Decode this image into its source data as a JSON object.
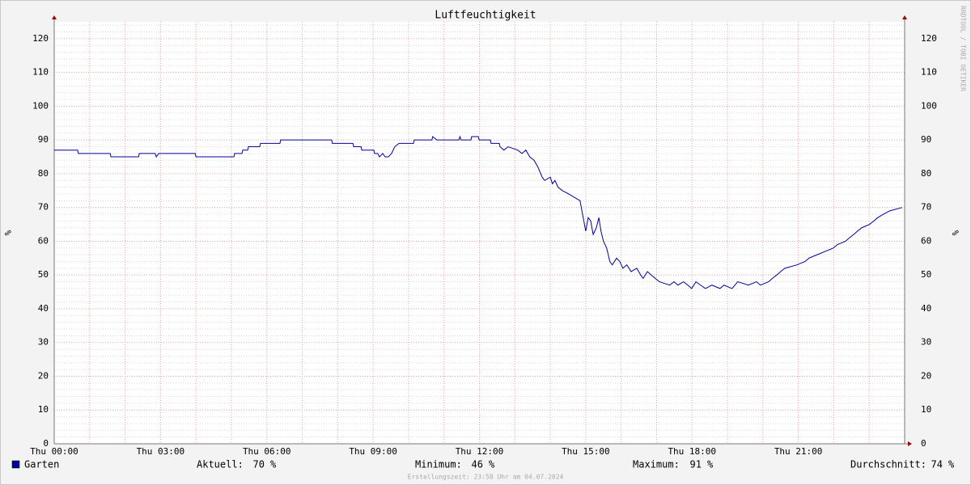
{
  "chart_data": {
    "type": "line",
    "title": "Luftfeuchtigkeit",
    "y_label": "%",
    "watermark": "RRDTOOL / TOBI OETIKER",
    "footer": "Erstellungszeit: 23:58 Uhr am 04.07.2024",
    "xlim": [
      0,
      24
    ],
    "xticks": [
      {
        "value": 0,
        "label": "Thu 00:00"
      },
      {
        "value": 3,
        "label": "Thu 03:00"
      },
      {
        "value": 6,
        "label": "Thu 06:00"
      },
      {
        "value": 9,
        "label": "Thu 09:00"
      },
      {
        "value": 12,
        "label": "Thu 12:00"
      },
      {
        "value": 15,
        "label": "Thu 15:00"
      },
      {
        "value": 18,
        "label": "Thu 18:00"
      },
      {
        "value": 21,
        "label": "Thu 21:00"
      }
    ],
    "xgrid": [
      1,
      2,
      4,
      5,
      7,
      8,
      10,
      11,
      13,
      14,
      16,
      17,
      19,
      20,
      22,
      23
    ],
    "ylim": [
      0,
      125
    ],
    "yticks": [
      0,
      10,
      20,
      30,
      40,
      50,
      60,
      70,
      80,
      90,
      100,
      110,
      120
    ],
    "yminor": [
      2,
      4,
      6,
      8,
      12,
      14,
      16,
      18,
      22,
      24,
      26,
      28,
      32,
      34,
      36,
      38,
      42,
      44,
      46,
      48,
      52,
      54,
      56,
      58,
      62,
      64,
      66,
      68,
      72,
      74,
      76,
      78,
      82,
      84,
      86,
      88,
      92,
      94,
      96,
      98,
      102,
      104,
      106,
      108,
      112,
      114,
      116,
      118,
      122,
      124
    ],
    "grid": true,
    "x": [
      0,
      0.66,
      0.68,
      1.58,
      1.6,
      2.38,
      2.4,
      2.85,
      2.88,
      2.95,
      3.98,
      4.0,
      5.07,
      5.09,
      5.3,
      5.32,
      5.46,
      5.48,
      5.8,
      5.82,
      6.37,
      6.39,
      7.83,
      7.85,
      8.43,
      8.45,
      8.66,
      8.68,
      9.02,
      9.04,
      9.13,
      9.18,
      9.27,
      9.34,
      9.43,
      9.52,
      9.61,
      9.73,
      10.14,
      10.16,
      10.66,
      10.68,
      10.8,
      11.42,
      11.45,
      11.48,
      11.76,
      11.78,
      11.97,
      11.99,
      12.31,
      12.33,
      12.56,
      12.58,
      12.69,
      12.81,
      13.08,
      13.2,
      13.31,
      13.42,
      13.54,
      13.65,
      13.77,
      13.84,
      14.0,
      14.06,
      14.13,
      14.22,
      14.34,
      14.52,
      14.68,
      14.84,
      14.91,
      15.0,
      15.07,
      15.14,
      15.21,
      15.3,
      15.37,
      15.43,
      15.5,
      15.59,
      15.68,
      15.75,
      15.87,
      15.96,
      16.05,
      16.16,
      16.28,
      16.44,
      16.55,
      16.62,
      16.74,
      16.85,
      16.96,
      17.08,
      17.37,
      17.49,
      17.6,
      17.76,
      17.88,
      17.99,
      18.11,
      18.24,
      18.38,
      18.56,
      18.79,
      18.9,
      19.13,
      19.29,
      19.59,
      19.82,
      19.93,
      20.16,
      20.27,
      20.39,
      20.5,
      20.62,
      20.96,
      21.19,
      21.3,
      21.53,
      21.76,
      21.99,
      22.1,
      22.33,
      22.44,
      22.56,
      22.67,
      22.79,
      23.01,
      23.13,
      23.24,
      23.4,
      23.58,
      23.93
    ],
    "series": [
      {
        "name": "Garten",
        "color": "#00009c",
        "values": [
          87,
          87,
          86,
          86,
          85,
          85,
          86,
          86,
          85,
          86,
          86,
          85,
          85,
          86,
          86,
          87,
          87,
          88,
          88,
          89,
          89,
          90,
          90,
          89,
          89,
          88,
          88,
          87,
          87,
          86,
          86,
          85,
          86,
          85,
          85,
          86,
          88,
          89,
          89,
          90,
          90,
          91,
          90,
          90,
          91,
          90,
          90,
          91,
          91,
          90,
          90,
          89,
          89,
          88,
          87,
          88,
          87,
          86,
          87,
          85,
          84,
          82,
          79,
          78,
          79,
          77,
          78,
          76,
          75,
          74,
          73,
          72,
          68,
          63,
          67,
          66,
          62,
          64,
          67,
          63,
          60,
          58,
          54,
          53,
          55,
          54,
          52,
          53,
          51,
          52,
          50,
          49,
          51,
          50,
          49,
          48,
          47,
          48,
          47,
          48,
          47,
          46,
          48,
          47,
          46,
          47,
          46,
          47,
          46,
          48,
          47,
          48,
          47,
          48,
          49,
          50,
          51,
          52,
          53,
          54,
          55,
          56,
          57,
          58,
          59,
          60,
          61,
          62,
          63,
          64,
          65,
          66,
          67,
          68,
          69,
          70
        ]
      }
    ],
    "stats": [
      {
        "label": "Aktuell:",
        "value": 70,
        "unit": "%"
      },
      {
        "label": "Minimum:",
        "value": 46,
        "unit": "%"
      },
      {
        "label": "Maximum:",
        "value": 91,
        "unit": "%"
      },
      {
        "label": "Durchschnitt:",
        "value": 74,
        "unit": "%"
      }
    ]
  }
}
